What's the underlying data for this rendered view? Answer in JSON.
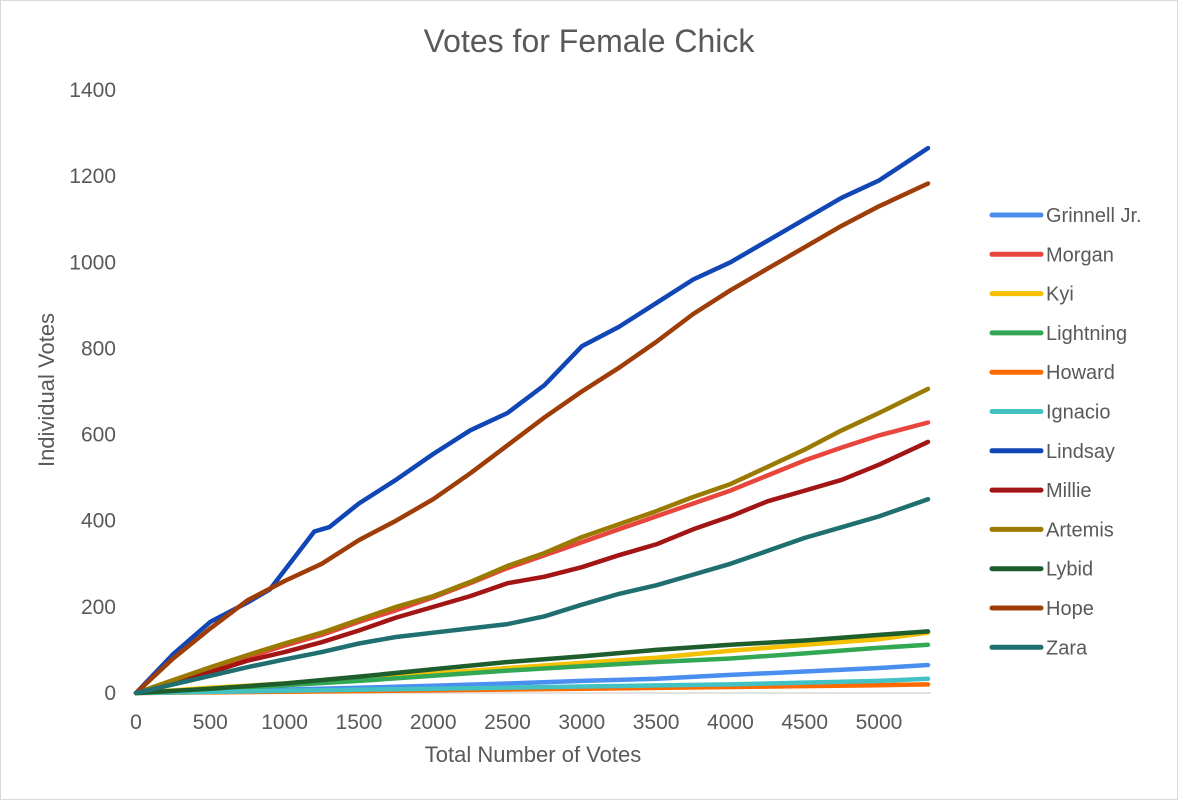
{
  "chart_data": {
    "type": "line",
    "title": "Votes for Female Chick",
    "xlabel": "Total Number of Votes",
    "ylabel": "Individual Votes",
    "xlim": [
      0,
      5350
    ],
    "ylim": [
      0,
      1400
    ],
    "xticks": [
      0,
      500,
      1000,
      1500,
      2000,
      2500,
      3000,
      3500,
      4000,
      4500,
      5000
    ],
    "yticks": [
      0,
      200,
      400,
      600,
      800,
      1000,
      1200,
      1400
    ],
    "grid": false,
    "legend_position": "right",
    "series": [
      {
        "name": "Grinnell Jr.",
        "color": "#4a8ef0",
        "x": [
          0,
          500,
          1000,
          1500,
          2000,
          2500,
          3000,
          3500,
          4000,
          4500,
          5000,
          5330
        ],
        "y": [
          0,
          5,
          8,
          12,
          17,
          22,
          28,
          33,
          42,
          50,
          58,
          65
        ]
      },
      {
        "name": "Morgan",
        "color": "#e8453c",
        "x": [
          0,
          250,
          500,
          750,
          1000,
          1250,
          1500,
          1750,
          2000,
          2250,
          2500,
          2750,
          3000,
          3250,
          3500,
          3750,
          4000,
          4250,
          4500,
          4750,
          5000,
          5330
        ],
        "y": [
          0,
          28,
          55,
          83,
          110,
          135,
          165,
          192,
          222,
          255,
          290,
          320,
          350,
          380,
          410,
          440,
          470,
          505,
          540,
          570,
          598,
          628
        ]
      },
      {
        "name": "Kyi",
        "color": "#f5c000",
        "x": [
          0,
          500,
          1000,
          1500,
          2000,
          2500,
          3000,
          3500,
          4000,
          4500,
          5000,
          5330
        ],
        "y": [
          0,
          12,
          22,
          32,
          45,
          58,
          70,
          82,
          98,
          112,
          125,
          140
        ]
      },
      {
        "name": "Lightning",
        "color": "#33a854",
        "x": [
          0,
          500,
          1000,
          1500,
          2000,
          2500,
          3000,
          3500,
          4000,
          4500,
          5000,
          5330
        ],
        "y": [
          0,
          8,
          18,
          28,
          40,
          52,
          62,
          72,
          80,
          92,
          105,
          112
        ]
      },
      {
        "name": "Howard",
        "color": "#ff6a00",
        "x": [
          0,
          1000,
          2000,
          3000,
          4000,
          5000,
          5330
        ],
        "y": [
          0,
          3,
          6,
          10,
          14,
          18,
          20
        ]
      },
      {
        "name": "Ignacio",
        "color": "#42c2c2",
        "x": [
          0,
          1000,
          2000,
          3000,
          4000,
          5000,
          5330
        ],
        "y": [
          0,
          5,
          10,
          15,
          20,
          28,
          33
        ]
      },
      {
        "name": "Lindsay",
        "color": "#1046b5",
        "x": [
          0,
          250,
          500,
          750,
          900,
          1000,
          1100,
          1200,
          1300,
          1500,
          1750,
          2000,
          2250,
          2500,
          2750,
          3000,
          3250,
          3500,
          3750,
          4000,
          4250,
          4500,
          4750,
          5000,
          5330
        ],
        "y": [
          0,
          90,
          165,
          210,
          240,
          285,
          330,
          375,
          385,
          440,
          495,
          555,
          610,
          650,
          715,
          805,
          850,
          905,
          960,
          1000,
          1050,
          1100,
          1150,
          1190,
          1265
        ]
      },
      {
        "name": "Millie",
        "color": "#a31515",
        "x": [
          0,
          250,
          500,
          750,
          1000,
          1250,
          1500,
          1750,
          2000,
          2250,
          2500,
          2750,
          3000,
          3250,
          3500,
          3750,
          4000,
          4250,
          4500,
          4750,
          5000,
          5330
        ],
        "y": [
          0,
          22,
          48,
          75,
          95,
          118,
          145,
          175,
          200,
          225,
          255,
          270,
          292,
          320,
          345,
          380,
          410,
          445,
          470,
          495,
          530,
          583
        ]
      },
      {
        "name": "Artemis",
        "color": "#9a7a00",
        "x": [
          0,
          250,
          500,
          750,
          1000,
          1250,
          1500,
          1750,
          2000,
          2250,
          2500,
          2750,
          3000,
          3250,
          3500,
          3750,
          4000,
          4250,
          4500,
          4750,
          5000,
          5330
        ],
        "y": [
          0,
          30,
          60,
          88,
          115,
          140,
          170,
          200,
          225,
          258,
          295,
          325,
          362,
          392,
          422,
          455,
          485,
          525,
          565,
          610,
          650,
          706
        ]
      },
      {
        "name": "Lybid",
        "color": "#1d5e2c",
        "x": [
          0,
          500,
          1000,
          1500,
          2000,
          2500,
          3000,
          3500,
          4000,
          4500,
          5000,
          5330
        ],
        "y": [
          0,
          10,
          22,
          38,
          55,
          72,
          85,
          100,
          112,
          122,
          135,
          143
        ]
      },
      {
        "name": "Hope",
        "color": "#9e3d08",
        "x": [
          0,
          250,
          500,
          750,
          1000,
          1250,
          1500,
          1750,
          2000,
          2250,
          2500,
          2750,
          3000,
          3250,
          3500,
          3750,
          4000,
          4250,
          4500,
          4750,
          5000,
          5330
        ],
        "y": [
          0,
          80,
          150,
          215,
          260,
          300,
          355,
          400,
          450,
          510,
          575,
          640,
          700,
          755,
          815,
          880,
          935,
          985,
          1035,
          1085,
          1130,
          1183
        ]
      },
      {
        "name": "Zara",
        "color": "#1f6f70",
        "x": [
          0,
          250,
          500,
          750,
          1000,
          1250,
          1500,
          1750,
          2000,
          2250,
          2500,
          2750,
          3000,
          3250,
          3500,
          3750,
          4000,
          4250,
          4500,
          4750,
          5000,
          5330
        ],
        "y": [
          0,
          20,
          40,
          60,
          78,
          95,
          115,
          130,
          140,
          150,
          160,
          178,
          205,
          230,
          250,
          275,
          300,
          330,
          360,
          385,
          410,
          450
        ]
      }
    ]
  }
}
